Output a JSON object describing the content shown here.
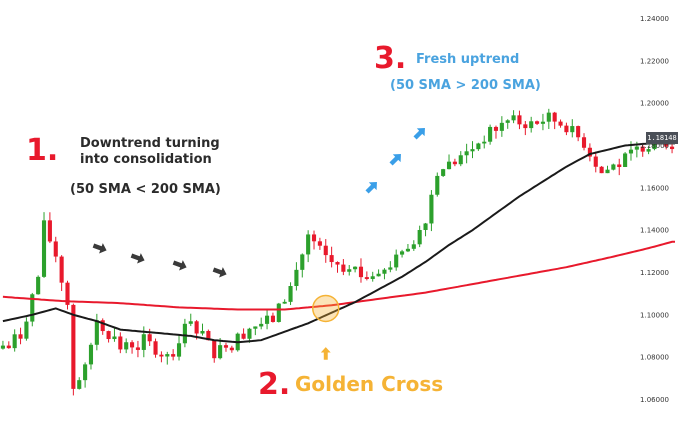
{
  "colors": {
    "up_candle": "#2ca02c",
    "down_candle": "#e8192c",
    "sma50": "#1a1a1a",
    "sma200": "#e8192c",
    "gray_arrow": "#3a3a3a",
    "blue_arrow": "#3a9fe8",
    "golden": "#f5b335",
    "red_number": "#e8192c",
    "blue_text": "#4aa3df",
    "dark_text": "#2b2b2b"
  },
  "annotations": {
    "step1_number": "1.",
    "step1_line1": "Downtrend turning",
    "step1_line2": "into consolidation",
    "step1_condition": "(50 SMA < 200 SMA)",
    "step2_number": "2.",
    "step2_text": "Golden Cross",
    "step3_number": "3.",
    "step3_text": "Fresh uptrend",
    "step3_condition": "(50 SMA > 200 SMA)"
  },
  "price_label": "1.18148",
  "chart_data": {
    "type": "candlestick",
    "y_axis": {
      "ticks": [
        "1.24000",
        "1.22000",
        "1.20000",
        "1.18000",
        "1.16000",
        "1.14000",
        "1.12000",
        "1.10000",
        "1.08000",
        "1.06000"
      ],
      "range": [
        1.055,
        1.245
      ],
      "position": "right"
    },
    "grid": false,
    "legend": "none",
    "series": [
      {
        "kind": "candles",
        "candle_count": 115
      },
      {
        "kind": "line",
        "label": "50 SMA"
      },
      {
        "kind": "line",
        "label": "200 SMA"
      }
    ],
    "price_path": [
      [
        0,
        1.084
      ],
      [
        4,
        1.09
      ],
      [
        7,
        1.118
      ],
      [
        8,
        1.142
      ],
      [
        10,
        1.128
      ],
      [
        12,
        1.105
      ],
      [
        13,
        1.066
      ],
      [
        15,
        1.074
      ],
      [
        17,
        1.098
      ],
      [
        21,
        1.084
      ],
      [
        25,
        1.088
      ],
      [
        29,
        1.08
      ],
      [
        33,
        1.098
      ],
      [
        37,
        1.082
      ],
      [
        40,
        1.087
      ],
      [
        43,
        1.094
      ],
      [
        47,
        1.098
      ],
      [
        50,
        1.113
      ],
      [
        53,
        1.137
      ],
      [
        56,
        1.127
      ],
      [
        59,
        1.12
      ],
      [
        62,
        1.118
      ],
      [
        66,
        1.122
      ],
      [
        70,
        1.13
      ],
      [
        73,
        1.146
      ],
      [
        75,
        1.168
      ],
      [
        79,
        1.174
      ],
      [
        83,
        1.184
      ],
      [
        87,
        1.192
      ],
      [
        91,
        1.19
      ],
      [
        94,
        1.193
      ],
      [
        97,
        1.189
      ],
      [
        100,
        1.181
      ],
      [
        103,
        1.167
      ],
      [
        106,
        1.172
      ],
      [
        110,
        1.18
      ],
      [
        114,
        1.181
      ]
    ],
    "sma50_path": [
      [
        0,
        1.097
      ],
      [
        5,
        1.1
      ],
      [
        9,
        1.103
      ],
      [
        12,
        1.1
      ],
      [
        16,
        1.097
      ],
      [
        20,
        1.093
      ],
      [
        24,
        1.092
      ],
      [
        28,
        1.091
      ],
      [
        32,
        1.09
      ],
      [
        36,
        1.088
      ],
      [
        40,
        1.087
      ],
      [
        44,
        1.088
      ],
      [
        48,
        1.092
      ],
      [
        52,
        1.096
      ],
      [
        56,
        1.101
      ],
      [
        60,
        1.106
      ],
      [
        64,
        1.112
      ],
      [
        68,
        1.118
      ],
      [
        72,
        1.125
      ],
      [
        76,
        1.133
      ],
      [
        80,
        1.14
      ],
      [
        84,
        1.148
      ],
      [
        88,
        1.156
      ],
      [
        92,
        1.163
      ],
      [
        96,
        1.17
      ],
      [
        100,
        1.176
      ],
      [
        103,
        1.178
      ],
      [
        106,
        1.18
      ],
      [
        110,
        1.181
      ],
      [
        114,
        1.181
      ]
    ],
    "sma200_path": [
      [
        0,
        1.1085
      ],
      [
        10,
        1.1065
      ],
      [
        20,
        1.1055
      ],
      [
        30,
        1.1035
      ],
      [
        40,
        1.1025
      ],
      [
        48,
        1.1025
      ],
      [
        56,
        1.1045
      ],
      [
        64,
        1.1075
      ],
      [
        72,
        1.1105
      ],
      [
        80,
        1.1145
      ],
      [
        88,
        1.1185
      ],
      [
        96,
        1.1225
      ],
      [
        104,
        1.1275
      ],
      [
        110,
        1.1315
      ],
      [
        114,
        1.1345
      ]
    ],
    "golden_cross": {
      "index": 55,
      "price": 1.103
    }
  }
}
